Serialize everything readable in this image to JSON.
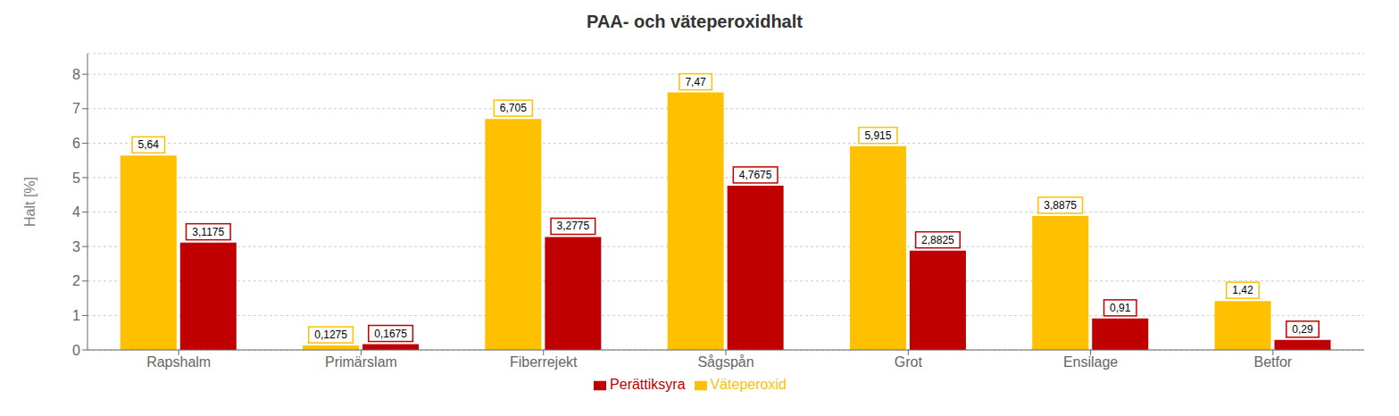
{
  "chart_data": {
    "type": "bar",
    "title": "PAA- och väteperoxidhalt",
    "categories": [
      "Rapshalm",
      "Primärslam",
      "Fiberrejekt",
      "Sågspån",
      "Grot",
      "Ensilage",
      "Betfor"
    ],
    "series": [
      {
        "name": "Väteperoxid",
        "color": "#FFC000",
        "values": [
          5.64,
          0.1275,
          6.705,
          7.47,
          5.915,
          3.8875,
          1.42
        ],
        "value_labels": [
          "5,64",
          "0,1275",
          "6,705",
          "7,47",
          "5,915",
          "3,8875",
          "1,42"
        ]
      },
      {
        "name": "Perättiksyra",
        "color": "#C00000",
        "values": [
          3.1175,
          0.1675,
          3.2775,
          4.7675,
          2.8825,
          0.91,
          0.29
        ],
        "value_labels": [
          "3,1175",
          "0,1675",
          "3,2775",
          "4,7675",
          "2,8825",
          "0,91",
          "0,29"
        ]
      }
    ],
    "ylabel": "Halt [%]",
    "ylim": [
      0,
      8.6
    ],
    "yticks": [
      0,
      1,
      2,
      3,
      4,
      5,
      6,
      7,
      8
    ],
    "grid": true,
    "legend": "bottom",
    "data_labels": true
  }
}
